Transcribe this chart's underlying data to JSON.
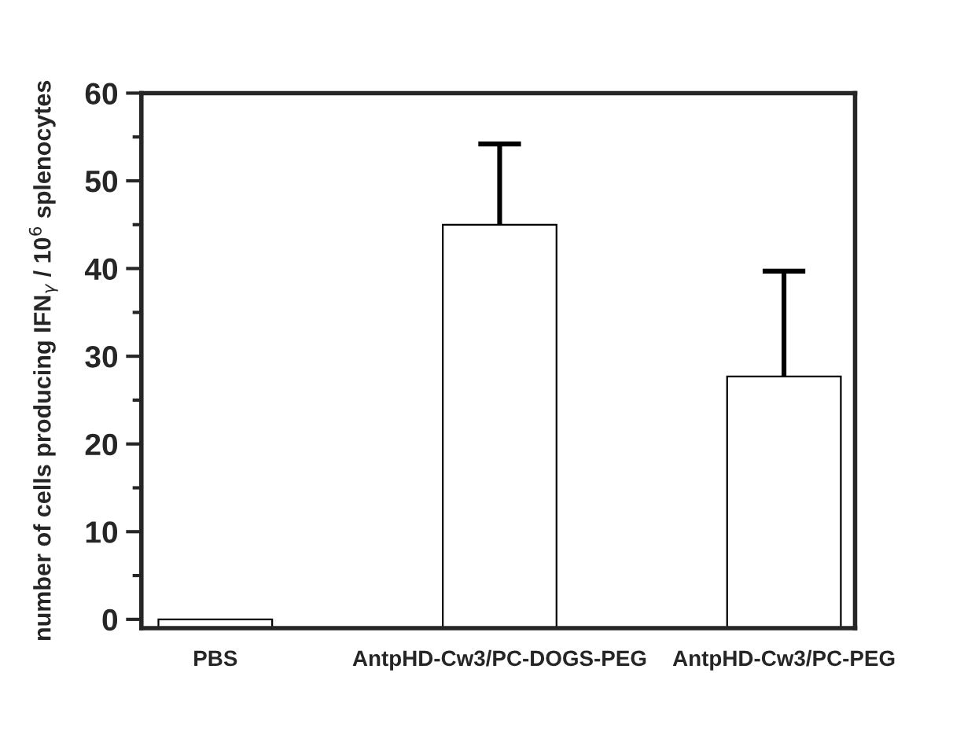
{
  "chart_data": {
    "type": "bar",
    "ylabel": "number of cells producing IFN$_{γ}$ / 10$^{6}$ splenocytes",
    "categories": [
      "PBS",
      "AntpHD-Cw3/PC-DOGS-PEG",
      "AntpHD-Cw3/PC-PEG"
    ],
    "base": [
      -1,
      -1,
      -1
    ],
    "values": [
      1,
      46,
      28.7
    ],
    "errors": [
      null,
      [
        45,
        54.2
      ],
      [
        27.7,
        39.7
      ]
    ],
    "colors": [
      "#ffffff",
      "#ffffff",
      "#ffffff"
    ],
    "ylim": [
      -1,
      60
    ],
    "yticks": [
      0,
      10,
      20,
      30,
      40,
      50,
      60
    ],
    "grid": false,
    "legend": false
  }
}
